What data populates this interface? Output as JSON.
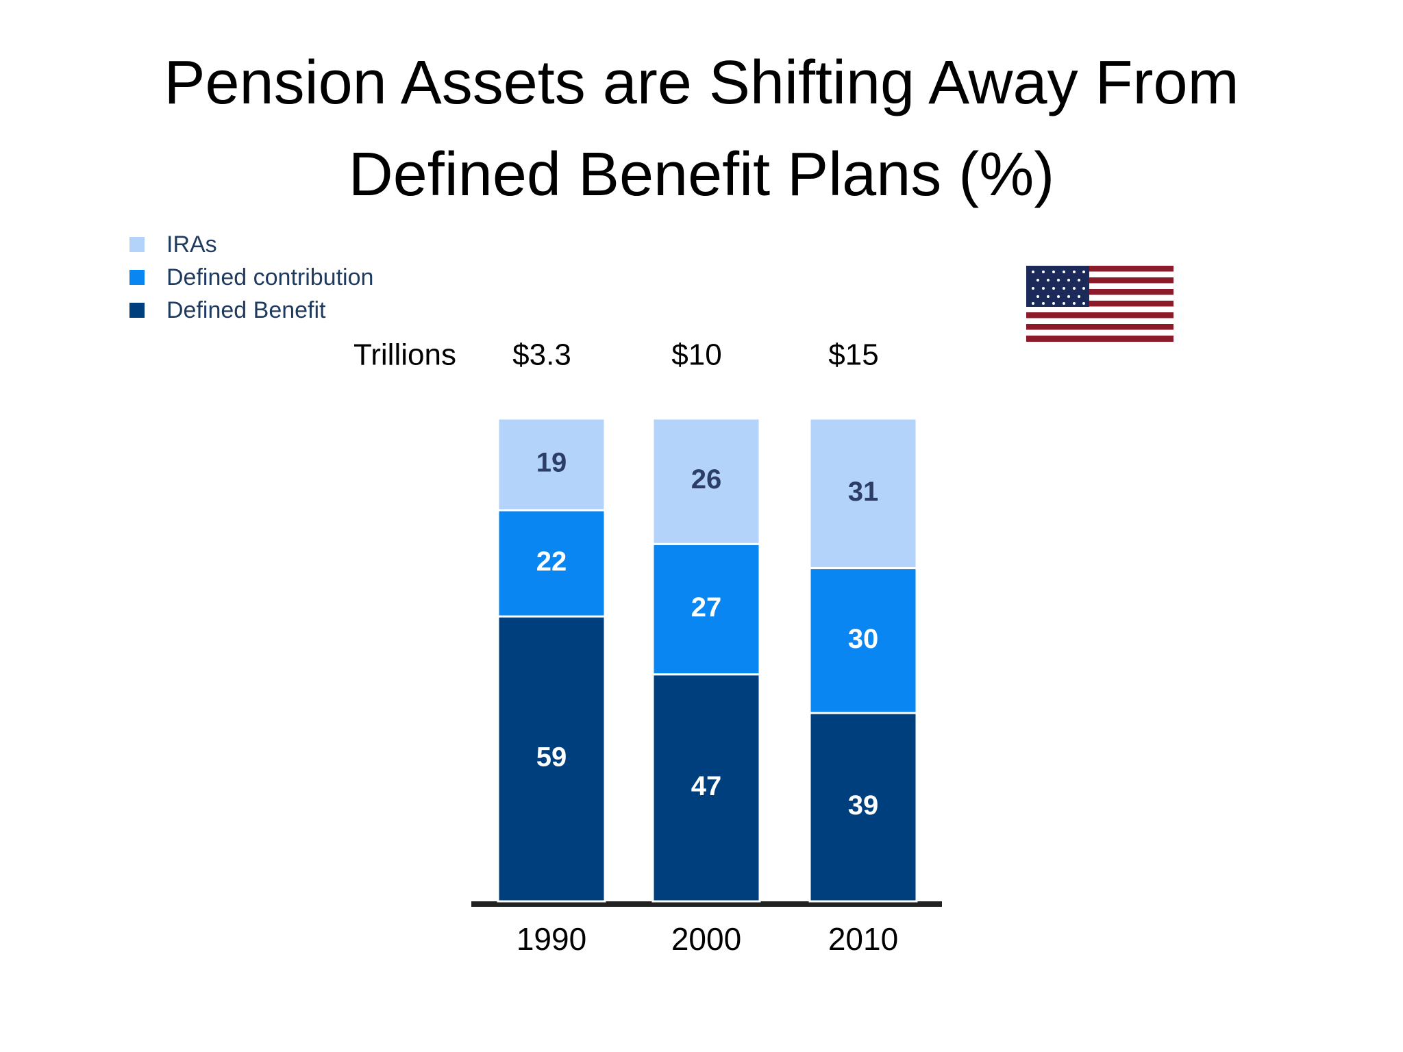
{
  "chart_data": {
    "type": "stacked_bar",
    "title": [
      "Pension Assets are Shifting Away From",
      "Defined Benefit Plans (%)"
    ],
    "categories": [
      "1990",
      "2000",
      "2010"
    ],
    "series": [
      {
        "name": "Defined Benefit",
        "color": "#003f7d",
        "values": [
          59,
          47,
          39
        ]
      },
      {
        "name": "Defined contribution",
        "color": "#0a86f2",
        "values": [
          22,
          27,
          30
        ]
      },
      {
        "name": "IRAs",
        "color": "#b3d3fa",
        "values": [
          19,
          26,
          31
        ]
      }
    ],
    "ylim": [
      0,
      100
    ],
    "annotations": {
      "label": "Trillions",
      "totals": [
        "$3.3",
        "$10",
        "$15"
      ]
    },
    "legend": "top-left"
  }
}
